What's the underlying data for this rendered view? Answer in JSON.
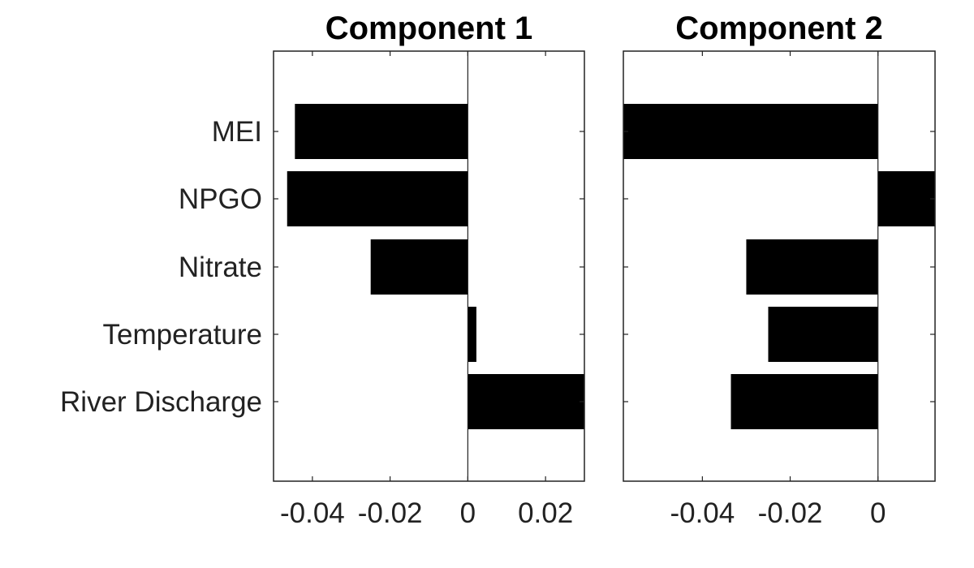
{
  "chart_data": {
    "type": "bar",
    "orientation": "horizontal",
    "categories": [
      "MEI",
      "NPGO",
      "Nitrate",
      "Temperature",
      "River Discharge"
    ],
    "colors": {
      "bar": "#000000"
    },
    "grid": false,
    "panels": [
      {
        "title": "Component 1",
        "values": [
          -0.0445,
          -0.0465,
          -0.025,
          0.0022,
          0.0305
        ],
        "xlim": [
          -0.05,
          0.03
        ],
        "xticks": [
          -0.04,
          -0.02,
          0,
          0.02
        ],
        "xtick_labels": [
          "-0.04",
          "-0.02",
          "0",
          "0.02"
        ]
      },
      {
        "title": "Component 2",
        "values": [
          -0.0675,
          0.015,
          -0.03,
          -0.025,
          -0.0335
        ],
        "xlim": [
          -0.058,
          0.013
        ],
        "xticks": [
          -0.04,
          -0.02,
          0
        ],
        "xtick_labels": [
          "-0.04",
          "-0.02",
          "0"
        ]
      }
    ]
  }
}
